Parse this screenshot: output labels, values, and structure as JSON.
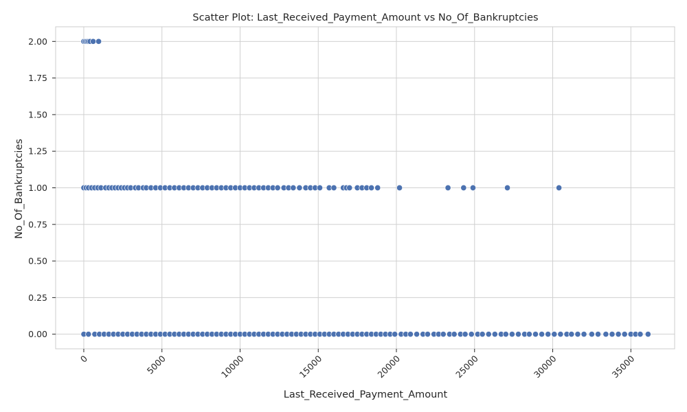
{
  "chart_data": {
    "type": "scatter",
    "title": "Scatter Plot: Last_Received_Payment_Amount vs No_Of_Bankruptcies",
    "xlabel": "Last_Received_Payment_Amount",
    "ylabel": "No_Of_Bankruptcies",
    "xlim": [
      -1800,
      37800
    ],
    "ylim": [
      -0.1,
      2.1
    ],
    "x_ticks": [
      0,
      5000,
      10000,
      15000,
      20000,
      25000,
      30000,
      35000
    ],
    "x_tick_labels": [
      "0",
      "5000",
      "10000",
      "15000",
      "20000",
      "25000",
      "30000",
      "35000"
    ],
    "y_ticks": [
      0,
      0.25,
      0.5,
      0.75,
      1.0,
      1.25,
      1.5,
      1.75,
      2.0
    ],
    "y_tick_labels": [
      "0.00",
      "0.25",
      "0.50",
      "0.75",
      "1.00",
      "1.25",
      "1.50",
      "1.75",
      "2.00"
    ],
    "grid": true,
    "legend": "none",
    "marker_color": "#4c72b0",
    "points": [
      {
        "x": 0,
        "y": 2
      },
      {
        "x": 100,
        "y": 2
      },
      {
        "x": 200,
        "y": 2
      },
      {
        "x": 300,
        "y": 2
      },
      {
        "x": 400,
        "y": 2
      },
      {
        "x": 600,
        "y": 2
      },
      {
        "x": 950,
        "y": 2
      },
      {
        "x": 0,
        "y": 1
      },
      {
        "x": 150,
        "y": 1
      },
      {
        "x": 300,
        "y": 1
      },
      {
        "x": 500,
        "y": 1
      },
      {
        "x": 700,
        "y": 1
      },
      {
        "x": 900,
        "y": 1
      },
      {
        "x": 1100,
        "y": 1
      },
      {
        "x": 1400,
        "y": 1
      },
      {
        "x": 1600,
        "y": 1
      },
      {
        "x": 1800,
        "y": 1
      },
      {
        "x": 2000,
        "y": 1
      },
      {
        "x": 2200,
        "y": 1
      },
      {
        "x": 2400,
        "y": 1
      },
      {
        "x": 2600,
        "y": 1
      },
      {
        "x": 2800,
        "y": 1
      },
      {
        "x": 3000,
        "y": 1
      },
      {
        "x": 3300,
        "y": 1
      },
      {
        "x": 3500,
        "y": 1
      },
      {
        "x": 3800,
        "y": 1
      },
      {
        "x": 4000,
        "y": 1
      },
      {
        "x": 4300,
        "y": 1
      },
      {
        "x": 4600,
        "y": 1
      },
      {
        "x": 4900,
        "y": 1
      },
      {
        "x": 5200,
        "y": 1
      },
      {
        "x": 5500,
        "y": 1
      },
      {
        "x": 5800,
        "y": 1
      },
      {
        "x": 6100,
        "y": 1
      },
      {
        "x": 6400,
        "y": 1
      },
      {
        "x": 6700,
        "y": 1
      },
      {
        "x": 7000,
        "y": 1
      },
      {
        "x": 7300,
        "y": 1
      },
      {
        "x": 7600,
        "y": 1
      },
      {
        "x": 7900,
        "y": 1
      },
      {
        "x": 8200,
        "y": 1
      },
      {
        "x": 8500,
        "y": 1
      },
      {
        "x": 8800,
        "y": 1
      },
      {
        "x": 9100,
        "y": 1
      },
      {
        "x": 9400,
        "y": 1
      },
      {
        "x": 9700,
        "y": 1
      },
      {
        "x": 10000,
        "y": 1
      },
      {
        "x": 10300,
        "y": 1
      },
      {
        "x": 10600,
        "y": 1
      },
      {
        "x": 10900,
        "y": 1
      },
      {
        "x": 11200,
        "y": 1
      },
      {
        "x": 11500,
        "y": 1
      },
      {
        "x": 11800,
        "y": 1
      },
      {
        "x": 12100,
        "y": 1
      },
      {
        "x": 12400,
        "y": 1
      },
      {
        "x": 12800,
        "y": 1
      },
      {
        "x": 13100,
        "y": 1
      },
      {
        "x": 13400,
        "y": 1
      },
      {
        "x": 13800,
        "y": 1
      },
      {
        "x": 14200,
        "y": 1
      },
      {
        "x": 14500,
        "y": 1
      },
      {
        "x": 14800,
        "y": 1
      },
      {
        "x": 15100,
        "y": 1
      },
      {
        "x": 15700,
        "y": 1
      },
      {
        "x": 16000,
        "y": 1
      },
      {
        "x": 16600,
        "y": 1
      },
      {
        "x": 16800,
        "y": 1
      },
      {
        "x": 17000,
        "y": 1
      },
      {
        "x": 17500,
        "y": 1
      },
      {
        "x": 17800,
        "y": 1
      },
      {
        "x": 18100,
        "y": 1
      },
      {
        "x": 18400,
        "y": 1
      },
      {
        "x": 18800,
        "y": 1
      },
      {
        "x": 20200,
        "y": 1
      },
      {
        "x": 23300,
        "y": 1
      },
      {
        "x": 24300,
        "y": 1
      },
      {
        "x": 24900,
        "y": 1
      },
      {
        "x": 27100,
        "y": 1
      },
      {
        "x": 30400,
        "y": 1
      },
      {
        "x": 0,
        "y": 0
      },
      {
        "x": 300,
        "y": 0
      },
      {
        "x": 700,
        "y": 0
      },
      {
        "x": 1000,
        "y": 0
      },
      {
        "x": 1300,
        "y": 0
      },
      {
        "x": 1600,
        "y": 0
      },
      {
        "x": 1900,
        "y": 0
      },
      {
        "x": 2200,
        "y": 0
      },
      {
        "x": 2500,
        "y": 0
      },
      {
        "x": 2800,
        "y": 0
      },
      {
        "x": 3100,
        "y": 0
      },
      {
        "x": 3400,
        "y": 0
      },
      {
        "x": 3700,
        "y": 0
      },
      {
        "x": 4000,
        "y": 0
      },
      {
        "x": 4300,
        "y": 0
      },
      {
        "x": 4600,
        "y": 0
      },
      {
        "x": 4900,
        "y": 0
      },
      {
        "x": 5200,
        "y": 0
      },
      {
        "x": 5500,
        "y": 0
      },
      {
        "x": 5800,
        "y": 0
      },
      {
        "x": 6100,
        "y": 0
      },
      {
        "x": 6400,
        "y": 0
      },
      {
        "x": 6700,
        "y": 0
      },
      {
        "x": 7000,
        "y": 0
      },
      {
        "x": 7300,
        "y": 0
      },
      {
        "x": 7600,
        "y": 0
      },
      {
        "x": 7900,
        "y": 0
      },
      {
        "x": 8200,
        "y": 0
      },
      {
        "x": 8500,
        "y": 0
      },
      {
        "x": 8800,
        "y": 0
      },
      {
        "x": 9100,
        "y": 0
      },
      {
        "x": 9400,
        "y": 0
      },
      {
        "x": 9700,
        "y": 0
      },
      {
        "x": 10000,
        "y": 0
      },
      {
        "x": 10300,
        "y": 0
      },
      {
        "x": 10600,
        "y": 0
      },
      {
        "x": 10900,
        "y": 0
      },
      {
        "x": 11200,
        "y": 0
      },
      {
        "x": 11500,
        "y": 0
      },
      {
        "x": 11800,
        "y": 0
      },
      {
        "x": 12100,
        "y": 0
      },
      {
        "x": 12400,
        "y": 0
      },
      {
        "x": 12700,
        "y": 0
      },
      {
        "x": 13000,
        "y": 0
      },
      {
        "x": 13300,
        "y": 0
      },
      {
        "x": 13600,
        "y": 0
      },
      {
        "x": 13900,
        "y": 0
      },
      {
        "x": 14200,
        "y": 0
      },
      {
        "x": 14500,
        "y": 0
      },
      {
        "x": 14800,
        "y": 0
      },
      {
        "x": 15100,
        "y": 0
      },
      {
        "x": 15400,
        "y": 0
      },
      {
        "x": 15700,
        "y": 0
      },
      {
        "x": 16000,
        "y": 0
      },
      {
        "x": 16300,
        "y": 0
      },
      {
        "x": 16600,
        "y": 0
      },
      {
        "x": 16900,
        "y": 0
      },
      {
        "x": 17200,
        "y": 0
      },
      {
        "x": 17500,
        "y": 0
      },
      {
        "x": 17800,
        "y": 0
      },
      {
        "x": 18100,
        "y": 0
      },
      {
        "x": 18400,
        "y": 0
      },
      {
        "x": 18700,
        "y": 0
      },
      {
        "x": 19000,
        "y": 0
      },
      {
        "x": 19300,
        "y": 0
      },
      {
        "x": 19600,
        "y": 0
      },
      {
        "x": 19900,
        "y": 0
      },
      {
        "x": 20300,
        "y": 0
      },
      {
        "x": 20600,
        "y": 0
      },
      {
        "x": 20900,
        "y": 0
      },
      {
        "x": 21300,
        "y": 0
      },
      {
        "x": 21700,
        "y": 0
      },
      {
        "x": 22000,
        "y": 0
      },
      {
        "x": 22400,
        "y": 0
      },
      {
        "x": 22700,
        "y": 0
      },
      {
        "x": 23000,
        "y": 0
      },
      {
        "x": 23400,
        "y": 0
      },
      {
        "x": 23700,
        "y": 0
      },
      {
        "x": 24100,
        "y": 0
      },
      {
        "x": 24400,
        "y": 0
      },
      {
        "x": 24800,
        "y": 0
      },
      {
        "x": 25200,
        "y": 0
      },
      {
        "x": 25500,
        "y": 0
      },
      {
        "x": 25900,
        "y": 0
      },
      {
        "x": 26300,
        "y": 0
      },
      {
        "x": 26700,
        "y": 0
      },
      {
        "x": 27000,
        "y": 0
      },
      {
        "x": 27400,
        "y": 0
      },
      {
        "x": 27800,
        "y": 0
      },
      {
        "x": 28200,
        "y": 0
      },
      {
        "x": 28500,
        "y": 0
      },
      {
        "x": 28900,
        "y": 0
      },
      {
        "x": 29300,
        "y": 0
      },
      {
        "x": 29700,
        "y": 0
      },
      {
        "x": 30100,
        "y": 0
      },
      {
        "x": 30500,
        "y": 0
      },
      {
        "x": 30900,
        "y": 0
      },
      {
        "x": 31200,
        "y": 0
      },
      {
        "x": 31600,
        "y": 0
      },
      {
        "x": 32000,
        "y": 0
      },
      {
        "x": 32500,
        "y": 0
      },
      {
        "x": 32900,
        "y": 0
      },
      {
        "x": 33400,
        "y": 0
      },
      {
        "x": 33800,
        "y": 0
      },
      {
        "x": 34200,
        "y": 0
      },
      {
        "x": 34600,
        "y": 0
      },
      {
        "x": 35000,
        "y": 0
      },
      {
        "x": 35300,
        "y": 0
      },
      {
        "x": 35600,
        "y": 0
      },
      {
        "x": 36100,
        "y": 0
      }
    ]
  }
}
